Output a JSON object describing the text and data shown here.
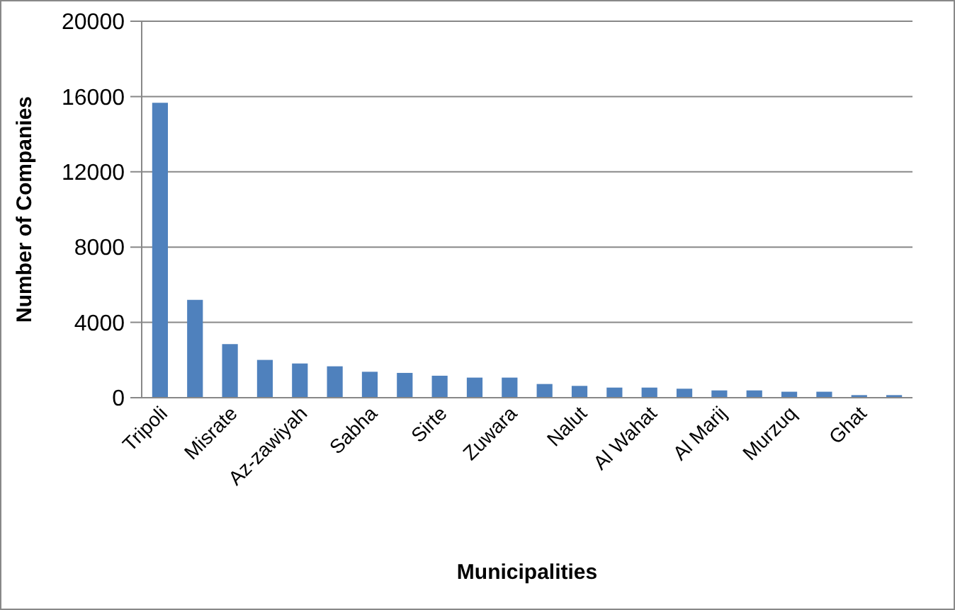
{
  "chart_data": {
    "type": "bar",
    "xlabel": "Municipalities",
    "ylabel": "Number of Companies",
    "categories": [
      "Tripoli",
      null,
      "Misrate",
      null,
      "Az-zawiyah",
      null,
      "Sabha",
      null,
      "Sirte",
      null,
      "Zuwara",
      null,
      "Nalut",
      null,
      "Al Wahat",
      null,
      "Al Marij",
      null,
      "Murzuq",
      null,
      "Ghat",
      null
    ],
    "values": [
      15630,
      5160,
      2810,
      1970,
      1780,
      1630,
      1340,
      1280,
      1130,
      1030,
      1030,
      690,
      590,
      500,
      500,
      440,
      350,
      350,
      280,
      280,
      100,
      100
    ],
    "color": "#4f81bd",
    "ylim": [
      0,
      20000
    ],
    "yticks": [
      0,
      4000,
      8000,
      12000,
      16000,
      20000
    ],
    "grid": "y"
  }
}
